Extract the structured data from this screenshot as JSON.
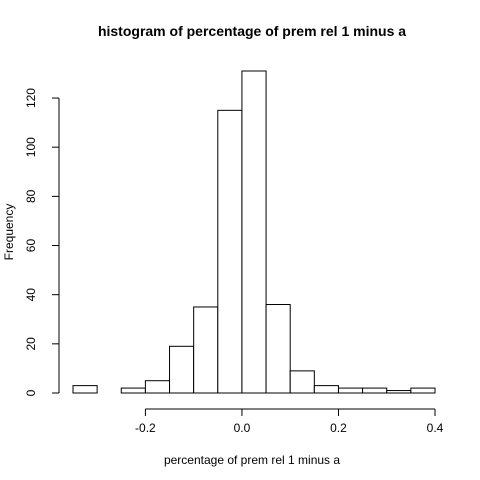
{
  "chart_data": {
    "type": "bar",
    "title": "histogram of percentage of prem rel 1 minus a",
    "xlabel": "percentage of prem rel 1 minus a",
    "ylabel": "Frequency",
    "xlim": [
      -0.35,
      0.4
    ],
    "ylim": [
      0,
      131
    ],
    "x_ticks": [
      -0.2,
      0.0,
      0.2,
      0.4
    ],
    "x_tick_labels": [
      "-0.2",
      "0.0",
      "0.2",
      "0.4"
    ],
    "y_ticks": [
      0,
      20,
      40,
      60,
      80,
      100,
      120
    ],
    "y_tick_labels": [
      "0",
      "20",
      "40",
      "60",
      "80",
      "100",
      "120"
    ],
    "bin_width": 0.05,
    "bins": [
      {
        "start": -0.35,
        "end": -0.3,
        "count": 3
      },
      {
        "start": -0.3,
        "end": -0.25,
        "count": 0
      },
      {
        "start": -0.25,
        "end": -0.2,
        "count": 2
      },
      {
        "start": -0.2,
        "end": -0.15,
        "count": 5
      },
      {
        "start": -0.15,
        "end": -0.1,
        "count": 19
      },
      {
        "start": -0.1,
        "end": -0.05,
        "count": 35
      },
      {
        "start": -0.05,
        "end": 0.0,
        "count": 115
      },
      {
        "start": 0.0,
        "end": 0.05,
        "count": 131
      },
      {
        "start": 0.05,
        "end": 0.1,
        "count": 36
      },
      {
        "start": 0.1,
        "end": 0.15,
        "count": 9
      },
      {
        "start": 0.15,
        "end": 0.2,
        "count": 3
      },
      {
        "start": 0.2,
        "end": 0.25,
        "count": 2
      },
      {
        "start": 0.25,
        "end": 0.3,
        "count": 2
      },
      {
        "start": 0.3,
        "end": 0.35,
        "count": 1
      },
      {
        "start": 0.35,
        "end": 0.4,
        "count": 2
      }
    ],
    "colors": {
      "bar_fill": "#ffffff",
      "bar_stroke": "#000000",
      "axis": "#000000"
    },
    "grid": false
  }
}
